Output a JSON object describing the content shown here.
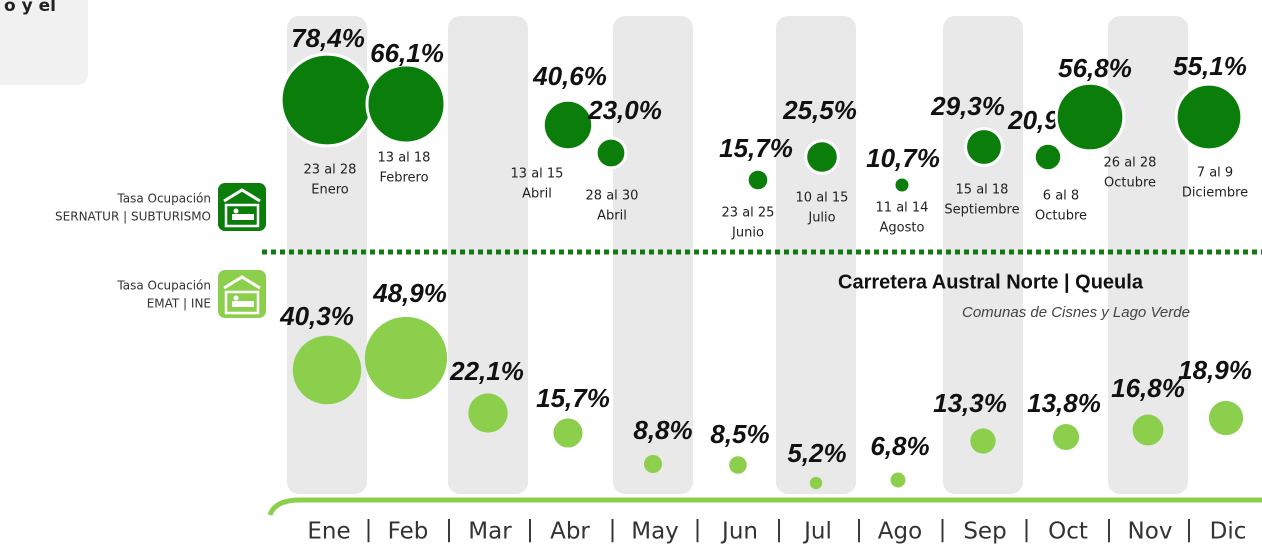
{
  "intro_fragment": "o y el",
  "legend": [
    {
      "line1": "Tasa Ocupación",
      "line2": "SERNATUR | SUBTURISMO",
      "color": "#0a7d0a"
    },
    {
      "line1": "Tasa Ocupación",
      "line2": "EMAT | INE",
      "color": "#8ccf4d"
    }
  ],
  "title": "Carretera Austral Norte | Queula",
  "subtitle": "Comunas de Cisnes y Lago Verde",
  "months": [
    "Ene",
    "Feb",
    "Mar",
    "Abr",
    "May",
    "Jun",
    "Jul",
    "Ago",
    "Sep",
    "Oct",
    "Nov",
    "Dic"
  ],
  "month_separator": "|",
  "sernatur": [
    {
      "value": 78.4,
      "label": "78,4%",
      "dates": "23 al 28",
      "month": "Enero"
    },
    {
      "value": 66.1,
      "label": "66,1%",
      "dates": "13 al 18",
      "month": "Febrero"
    },
    {
      "value": 40.6,
      "label": "40,6%",
      "dates": "13 al 15",
      "month": "Abril"
    },
    {
      "value": 23.0,
      "label": "23,0%",
      "dates": "28 al 30",
      "month": "Abril"
    },
    {
      "value": 15.7,
      "label": "15,7%",
      "dates": "23 al 25",
      "month": "Junio"
    },
    {
      "value": 25.5,
      "label": "25,5%",
      "dates": "10 al 15",
      "month": "Julio"
    },
    {
      "value": 10.7,
      "label": "10,7%",
      "dates": "11 al 14",
      "month": "Agosto"
    },
    {
      "value": 29.3,
      "label": "29,3%",
      "dates": "15 al 18",
      "month": "Septiembre"
    },
    {
      "value": 20.9,
      "label": "20,9%",
      "dates": "6 al 8",
      "month": "Octubre"
    },
    {
      "value": 56.8,
      "label": "56,8%",
      "dates": "26 al 28",
      "month": "Octubre"
    },
    {
      "value": 55.1,
      "label": "55,1%",
      "dates": "7 al 9",
      "month": "Diciembre"
    }
  ],
  "emat": [
    {
      "value": 40.3,
      "label": "40,3%"
    },
    {
      "value": 48.9,
      "label": "48,9%"
    },
    {
      "value": 22.1,
      "label": "22,1%"
    },
    {
      "value": 15.7,
      "label": "15,7%"
    },
    {
      "value": 8.8,
      "label": "8,8%"
    },
    {
      "value": 8.5,
      "label": "8,5%"
    },
    {
      "value": 5.2,
      "label": "5,2%"
    },
    {
      "value": 6.8,
      "label": "6,8%"
    },
    {
      "value": 13.3,
      "label": "13,3%"
    },
    {
      "value": 13.8,
      "label": "13,8%"
    },
    {
      "value": 16.8,
      "label": "16,8%"
    },
    {
      "value": 18.9,
      "label": "18,9%"
    }
  ]
}
